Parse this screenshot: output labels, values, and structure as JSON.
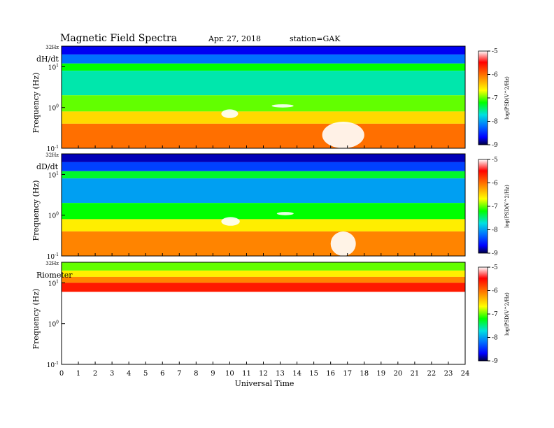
{
  "header": {
    "title": "Magnetic  Field  Spectra",
    "date": "Apr. 27, 2018",
    "station": "station=GAK"
  },
  "colors": {
    "colormap": [
      "#ffffff",
      "#ff0000",
      "#ff8800",
      "#ffff00",
      "#00ff00",
      "#00e0e0",
      "#0090ff",
      "#0000ff",
      "#000050"
    ],
    "background": "#ffffff"
  },
  "x_axis": {
    "label": "Universal Time",
    "ticks": [
      "0",
      "1",
      "2",
      "3",
      "4",
      "5",
      "6",
      "7",
      "8",
      "9",
      "10",
      "11",
      "12",
      "13",
      "14",
      "15",
      "16",
      "17",
      "18",
      "19",
      "20",
      "21",
      "22",
      "23",
      "24"
    ]
  },
  "colorbar": {
    "label": "log(PSD(V^2/Hz)",
    "ticks": [
      "-5",
      "-6",
      "-7",
      "-8",
      "-9"
    ]
  },
  "chart_data": [
    {
      "type": "heatmap",
      "panel_label": "dH/dt",
      "ylabel": "Frequency  (Hz)",
      "y_ticks": [
        "32Hz",
        "10^1",
        "10^0",
        "10^-1"
      ],
      "y_scale": "log",
      "ylim": [
        0.1,
        32
      ],
      "xlim": [
        0,
        24
      ],
      "xlabel": "Universal Time",
      "colorbar_range": [
        -9,
        -5
      ],
      "approx_bands": [
        {
          "freq_range": [
            20,
            32
          ],
          "log_psd": -8.7
        },
        {
          "freq_range": [
            12,
            20
          ],
          "log_psd": -8.2
        },
        {
          "freq_range": [
            8,
            12
          ],
          "log_psd": -7.2
        },
        {
          "freq_range": [
            2,
            8
          ],
          "log_psd": -7.6
        },
        {
          "freq_range": [
            0.8,
            2
          ],
          "log_psd": -7.0
        },
        {
          "freq_range": [
            0.4,
            0.8
          ],
          "log_psd": -6.5
        },
        {
          "freq_range": [
            0.1,
            0.4
          ],
          "log_psd": -6.0
        }
      ],
      "features": [
        {
          "ut_range": [
            9.5,
            10.5
          ],
          "freq_range": [
            0.55,
            0.9
          ],
          "log_psd": -5.0
        },
        {
          "ut_range": [
            15.5,
            18.0
          ],
          "freq_range": [
            0.1,
            0.45
          ],
          "log_psd": -5.0
        },
        {
          "ut_range": [
            12.5,
            13.8
          ],
          "freq_range": [
            1.0,
            1.2
          ],
          "log_psd": -5.0
        }
      ]
    },
    {
      "type": "heatmap",
      "panel_label": "dD/dt",
      "ylabel": "Frequency  (Hz)",
      "y_ticks": [
        "32Hz",
        "10^1",
        "10^0",
        "10^-1"
      ],
      "y_scale": "log",
      "ylim": [
        0.1,
        32
      ],
      "xlim": [
        0,
        24
      ],
      "xlabel": "Universal Time",
      "colorbar_range": [
        -9,
        -5
      ],
      "approx_bands": [
        {
          "freq_range": [
            20,
            32
          ],
          "log_psd": -8.8
        },
        {
          "freq_range": [
            12,
            20
          ],
          "log_psd": -8.4
        },
        {
          "freq_range": [
            8,
            12
          ],
          "log_psd": -7.3
        },
        {
          "freq_range": [
            2,
            8
          ],
          "log_psd": -8.0
        },
        {
          "freq_range": [
            0.8,
            2
          ],
          "log_psd": -7.2
        },
        {
          "freq_range": [
            0.4,
            0.8
          ],
          "log_psd": -6.6
        },
        {
          "freq_range": [
            0.1,
            0.4
          ],
          "log_psd": -6.1
        }
      ],
      "features": [
        {
          "ut_range": [
            9.5,
            10.6
          ],
          "freq_range": [
            0.55,
            0.9
          ],
          "log_psd": -5.0
        },
        {
          "ut_range": [
            16.0,
            17.5
          ],
          "freq_range": [
            0.1,
            0.4
          ],
          "log_psd": -5.0
        },
        {
          "ut_range": [
            12.8,
            13.8
          ],
          "freq_range": [
            1.0,
            1.2
          ],
          "log_psd": -5.0
        }
      ]
    },
    {
      "type": "heatmap",
      "panel_label": "Riometer",
      "ylabel": "Frequency  (Hz)",
      "y_ticks": [
        "32Hz",
        "10^1",
        "10^0",
        "10^-1"
      ],
      "y_scale": "log",
      "ylim": [
        0.1,
        32
      ],
      "xlim": [
        0,
        24
      ],
      "xlabel": "Universal Time",
      "colorbar_range": [
        -9,
        -5
      ],
      "approx_bands": [
        {
          "freq_range": [
            20,
            32
          ],
          "log_psd": -7.0
        },
        {
          "freq_range": [
            14,
            20
          ],
          "log_psd": -6.6
        },
        {
          "freq_range": [
            10,
            14
          ],
          "log_psd": -6.1
        },
        {
          "freq_range": [
            6,
            10
          ],
          "log_psd": -5.6
        },
        {
          "freq_range": [
            0.1,
            6
          ],
          "log_psd": -5.0
        }
      ],
      "features": []
    }
  ]
}
